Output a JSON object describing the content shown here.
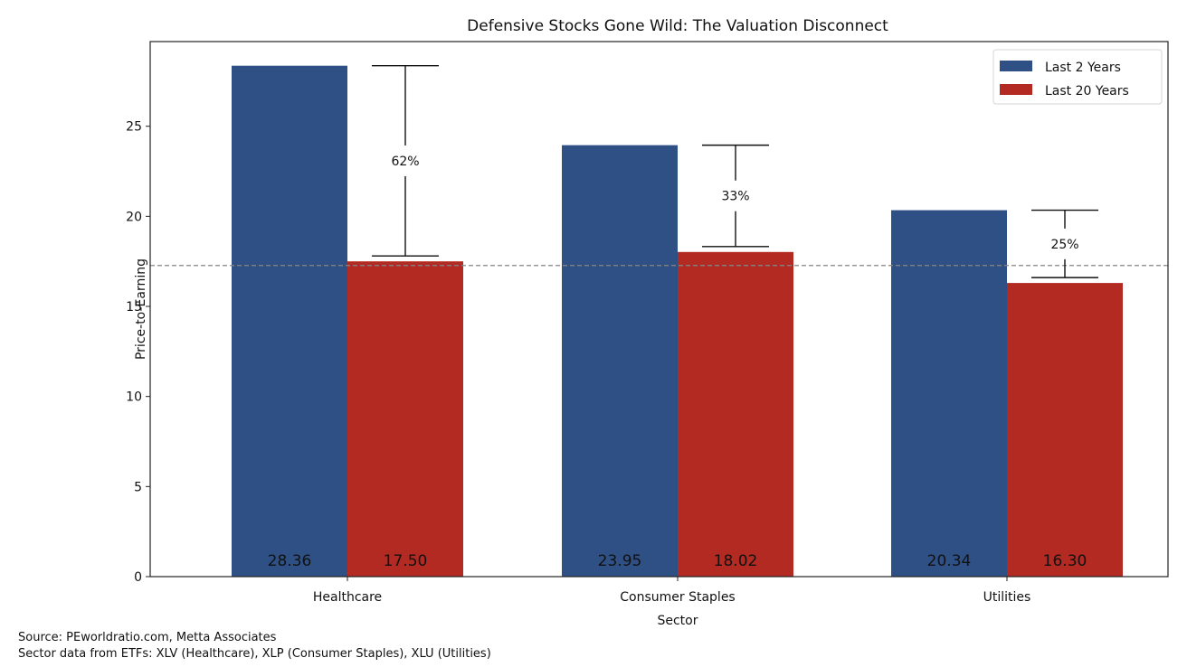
{
  "chart_data": {
    "type": "bar",
    "title": "Defensive Stocks Gone Wild: The Valuation Disconnect",
    "xlabel": "Sector",
    "ylabel": "Price-to-Earning",
    "categories": [
      "Healthcare",
      "Consumer Staples",
      "Utilities"
    ],
    "series": [
      {
        "name": "Last 2 Years",
        "color": "#2f5085",
        "values": [
          28.36,
          23.95,
          20.34
        ],
        "labels": [
          "28.36",
          "23.95",
          "20.34"
        ]
      },
      {
        "name": "Last 20 Years",
        "color": "#b22a22",
        "values": [
          17.5,
          18.02,
          16.3
        ],
        "labels": [
          "17.50",
          "18.02",
          "16.30"
        ]
      }
    ],
    "annotations": [
      {
        "category": "Healthcare",
        "label": "62%",
        "top": 28.36,
        "bottom": 17.8
      },
      {
        "category": "Consumer Staples",
        "label": "33%",
        "top": 23.95,
        "bottom": 18.32
      },
      {
        "category": "Utilities",
        "label": "25%",
        "top": 20.34,
        "bottom": 16.6
      }
    ],
    "reference_line": {
      "value": 17.27,
      "style": "dashed",
      "color": "#888888"
    },
    "yticks": [
      0,
      5,
      10,
      15,
      20,
      25
    ],
    "ylim": [
      0,
      29.7
    ],
    "grid": false,
    "legend_position": "top-right"
  },
  "footnotes": [
    "Source: PEworldratio.com,  Metta Associates",
    "Sector data from ETFs: XLV (Healthcare), XLP (Consumer Staples), XLU (Utilities)"
  ]
}
